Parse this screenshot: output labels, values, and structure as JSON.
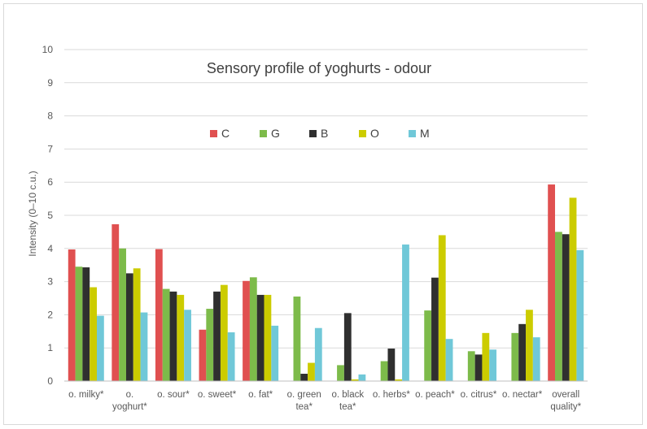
{
  "chart_data": {
    "type": "bar",
    "title": "Sensory profile of yoghurts - odour",
    "xlabel": "",
    "ylabel": "Intensity (0–10 c.u.)",
    "ylim": [
      0,
      10
    ],
    "yticks": [
      0,
      1,
      2,
      3,
      4,
      5,
      6,
      7,
      8,
      9,
      10
    ],
    "grid": true,
    "legend_position": "top-center",
    "categories": [
      [
        "o. milky*"
      ],
      [
        "o.",
        "yoghurt*"
      ],
      [
        "o. sour*"
      ],
      [
        "o. sweet*"
      ],
      [
        "o. fat*"
      ],
      [
        "o. green",
        "tea*"
      ],
      [
        "o. black",
        "tea*"
      ],
      [
        "o. herbs*"
      ],
      [
        "o. peach*"
      ],
      [
        "o. citrus*"
      ],
      [
        "o. nectar*"
      ],
      [
        "overall",
        "quality*"
      ]
    ],
    "series": [
      {
        "name": "C",
        "color": "#e05050",
        "values": [
          3.97,
          4.73,
          3.98,
          1.55,
          3.02,
          0.0,
          0.0,
          0.0,
          0.0,
          0.0,
          0.0,
          5.93
        ]
      },
      {
        "name": "G",
        "color": "#7dbb4a",
        "values": [
          3.45,
          4.0,
          2.78,
          2.18,
          3.13,
          2.55,
          0.48,
          0.6,
          2.13,
          0.9,
          1.45,
          4.5
        ]
      },
      {
        "name": "B",
        "color": "#2f2f2f",
        "values": [
          3.43,
          3.25,
          2.7,
          2.7,
          2.6,
          0.22,
          2.05,
          0.98,
          3.12,
          0.8,
          1.72,
          4.43
        ]
      },
      {
        "name": "O",
        "color": "#cccc00",
        "values": [
          2.83,
          3.4,
          2.6,
          2.9,
          2.6,
          0.55,
          0.05,
          0.05,
          4.4,
          1.45,
          2.15,
          5.53
        ]
      },
      {
        "name": "M",
        "color": "#70c8d8",
        "values": [
          1.97,
          2.07,
          2.15,
          1.47,
          1.67,
          1.6,
          0.2,
          4.12,
          1.27,
          0.95,
          1.32,
          3.95
        ]
      }
    ]
  }
}
